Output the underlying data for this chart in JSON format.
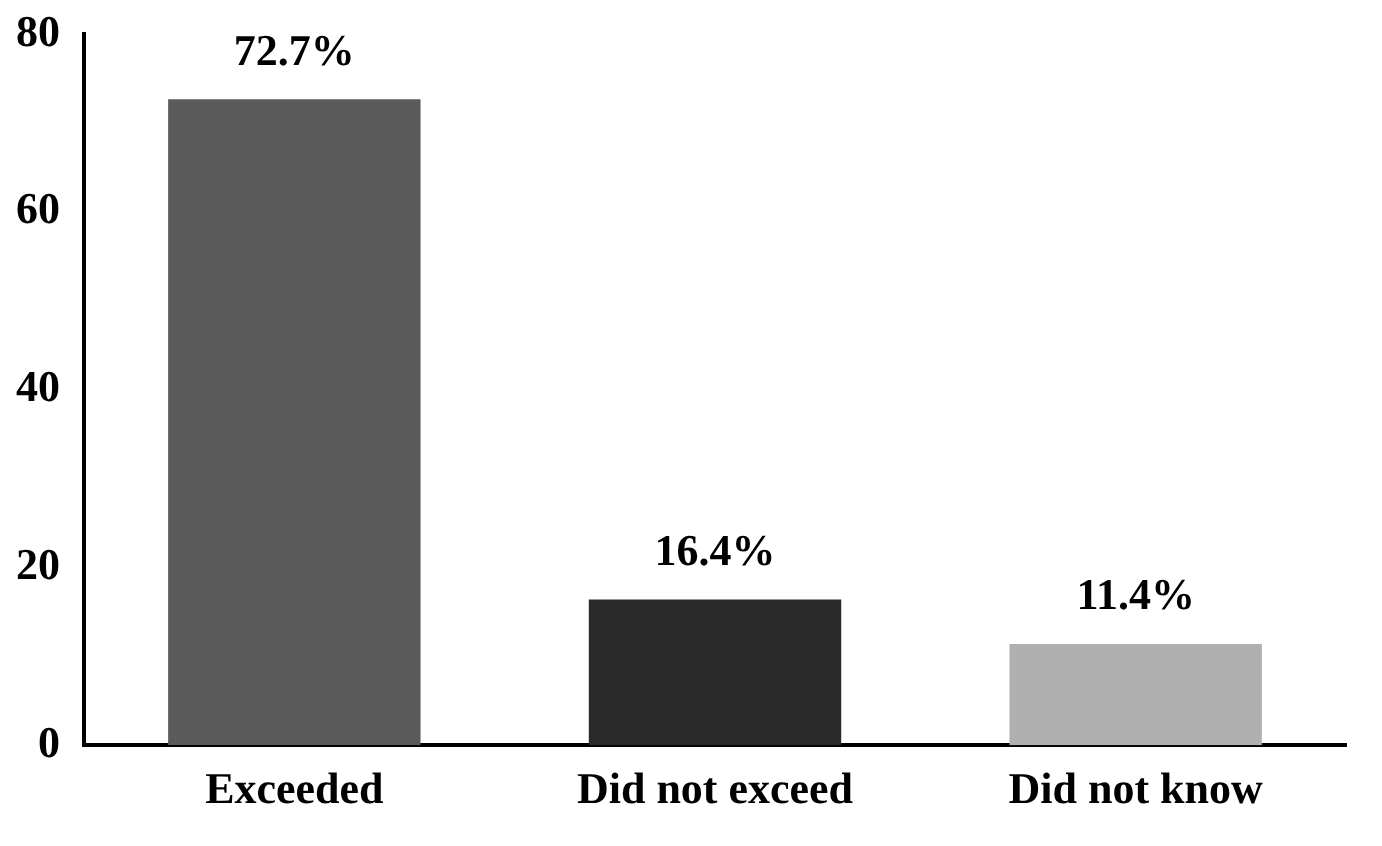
{
  "chart_data": {
    "type": "bar",
    "categories": [
      "Exceeded",
      "Did not exceed",
      "Did not know"
    ],
    "values": [
      72.7,
      16.4,
      11.4
    ],
    "colors": [
      "#5a5a5a",
      "#2a2a2a",
      "#b0b0b0"
    ],
    "value_labels": [
      "72.7%",
      "16.4%",
      "11.4%"
    ],
    "ylim": [
      0,
      80
    ],
    "yticks": [
      0,
      20,
      40,
      60,
      80
    ],
    "grid": false,
    "legend": false
  }
}
